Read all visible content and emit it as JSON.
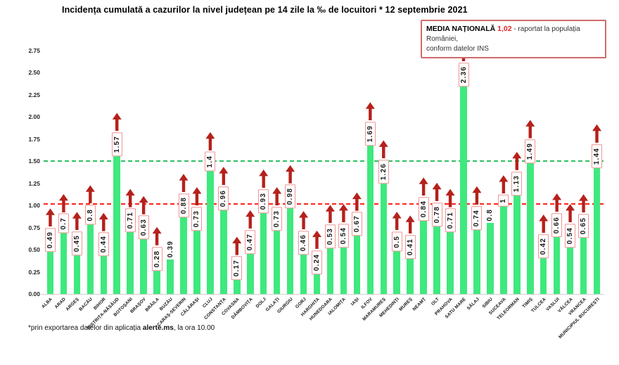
{
  "header": {
    "title": "Incidența cumulată a cazurilor la nivel județean pe 14 zile la ‰ de locuitori * 12 septembrie 2021"
  },
  "legend": {
    "label": "MEDIA NAȚIONALĂ ",
    "value": "1,02",
    "text_line1": " - raportat la populația României,",
    "text_line2": "conform datelor INS"
  },
  "footer": {
    "prefix": "*prin exportarea datelor din aplicația ",
    "app": "alerte.ms",
    "suffix": ", la ora 10.00"
  },
  "chart_data": {
    "type": "bar",
    "title": "Incidența cumulată a cazurilor la nivel județean pe 14 zile la ‰ de locuitori * 12 septembrie 2021",
    "xlabel": "",
    "ylabel": "",
    "ylim": [
      0,
      2.75
    ],
    "yticks": [
      "0.00",
      "0.25",
      "0.50",
      "0.75",
      "1.00",
      "1.25",
      "1.50",
      "1.75",
      "2.00",
      "2.25",
      "2.50",
      "2.75"
    ],
    "grid": false,
    "bar_color": "#3ee97d",
    "arrow_color": "#b5211b",
    "box_border_color": "#ef9595",
    "reference_lines": [
      {
        "name": "media-nationala",
        "value": 1.02,
        "color": "#ff221b",
        "style": "dashed"
      },
      {
        "name": "prag-1-50",
        "value": 1.5,
        "color": "#2fbf63",
        "style": "dashed"
      }
    ],
    "categories": [
      "ALBA",
      "ARAD",
      "ARGEȘ",
      "BACĂU",
      "BIHOR",
      "BISTRIȚA-NĂSĂUD",
      "BOTOȘANI",
      "BRAȘOV",
      "BRĂILA",
      "BUZĂU",
      "CARAȘ-SEVERIN",
      "CĂLĂRAȘI",
      "CLUJ",
      "CONSTANȚA",
      "COVASNA",
      "DÂMBOVIȚA",
      "DOLJ",
      "GALAȚI",
      "GIURGIU",
      "GORJ",
      "HARGHITA",
      "HUNEDOARA",
      "IALOMIȚA",
      "IAȘI",
      "ILFOV",
      "MARAMUREȘ",
      "MEHEDINȚI",
      "MUREȘ",
      "NEAMȚ",
      "OLT",
      "PRAHOVA",
      "SATU MARE",
      "SĂLAJ",
      "SIBIU",
      "SUCEAVA",
      "TELEORMAN",
      "TIMIȘ",
      "TULCEA",
      "VASLUI",
      "VÂLCEA",
      "VRANCEA",
      "MUNICIPIUL BUCUREȘTI"
    ],
    "values": [
      0.49,
      0.7,
      0.45,
      0.8,
      0.44,
      1.57,
      0.71,
      0.63,
      0.28,
      0.39,
      0.88,
      0.73,
      1.4,
      0.96,
      0.17,
      0.47,
      0.93,
      0.73,
      0.98,
      0.46,
      0.24,
      0.53,
      0.54,
      0.67,
      1.69,
      1.26,
      0.5,
      0.41,
      0.84,
      0.78,
      0.71,
      2.36,
      0.74,
      0.8,
      1,
      1.13,
      1.49,
      0.42,
      0.66,
      0.54,
      0.65,
      1.44
    ],
    "value_labels": [
      "0.49",
      "0.7",
      "0.45",
      "0.8",
      "0.44",
      "1.57",
      "0.71",
      "0.63",
      "0.28",
      "0.39",
      "0.88",
      "0.73",
      "1.4",
      "0.96",
      "0.17",
      "0.47",
      "0.93",
      "0.73",
      "0.98",
      "0.46",
      "0.24",
      "0.53",
      "0.54",
      "0.67",
      "1.69",
      "1.26",
      "0.5",
      "0.41",
      "0.84",
      "0.78",
      "0.71",
      "2.36",
      "0.74",
      "0.8",
      "1",
      "1.13",
      "1.49",
      "0.42",
      "0.66",
      "0.54",
      "0.65",
      "1.44"
    ],
    "arrow_flags": [
      true,
      true,
      true,
      true,
      true,
      true,
      true,
      true,
      true,
      false,
      true,
      true,
      true,
      true,
      true,
      true,
      true,
      true,
      true,
      true,
      true,
      true,
      true,
      true,
      true,
      true,
      true,
      true,
      true,
      true,
      true,
      true,
      true,
      false,
      true,
      true,
      true,
      true,
      true,
      true,
      true,
      true
    ]
  }
}
